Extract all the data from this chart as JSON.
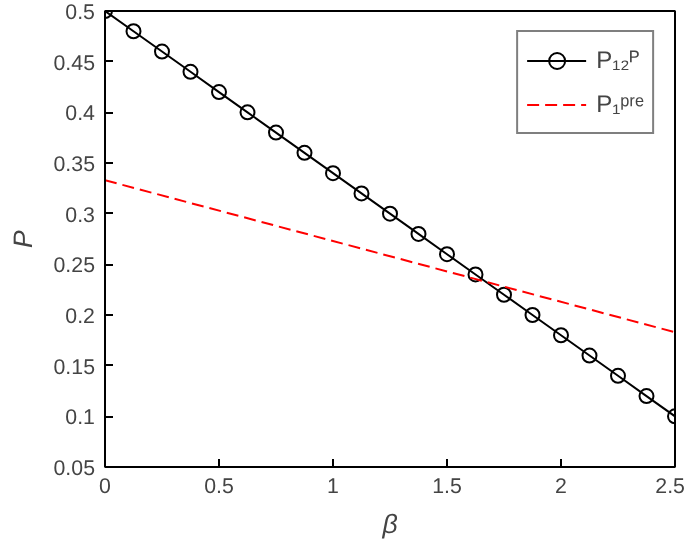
{
  "chart_data": {
    "type": "line",
    "xlabel": "β",
    "ylabel": "P",
    "xlim": [
      0,
      2.5
    ],
    "ylim": [
      0.05,
      0.5
    ],
    "xticks": [
      0,
      0.5,
      1,
      1.5,
      2,
      2.5
    ],
    "yticks": [
      0.05,
      0.1,
      0.15,
      0.2,
      0.25,
      0.3,
      0.35,
      0.4,
      0.45,
      0.5
    ],
    "grid": false,
    "legend": "top right",
    "series": [
      {
        "name": "P₁₂ᴾ",
        "color": "#000000",
        "marker": "circle",
        "line_style": "solid",
        "x": [
          0,
          0.125,
          0.25,
          0.375,
          0.5,
          0.625,
          0.75,
          0.875,
          1,
          1.125,
          1.25,
          1.375,
          1.5,
          1.625,
          1.75,
          1.875,
          2,
          2.125,
          2.25,
          2.375,
          2.5
        ],
        "values": [
          0.5,
          0.48,
          0.46,
          0.44,
          0.42,
          0.4,
          0.38,
          0.36,
          0.34,
          0.32,
          0.3,
          0.28,
          0.26,
          0.24,
          0.22,
          0.2,
          0.18,
          0.16,
          0.14,
          0.12,
          0.1
        ]
      },
      {
        "name": "P₁ᵖʳᵉ",
        "color": "#ff0000",
        "marker": "none",
        "line_style": "dashed",
        "x": [
          0,
          2.5
        ],
        "values": [
          0.333,
          0.183
        ]
      }
    ]
  }
}
